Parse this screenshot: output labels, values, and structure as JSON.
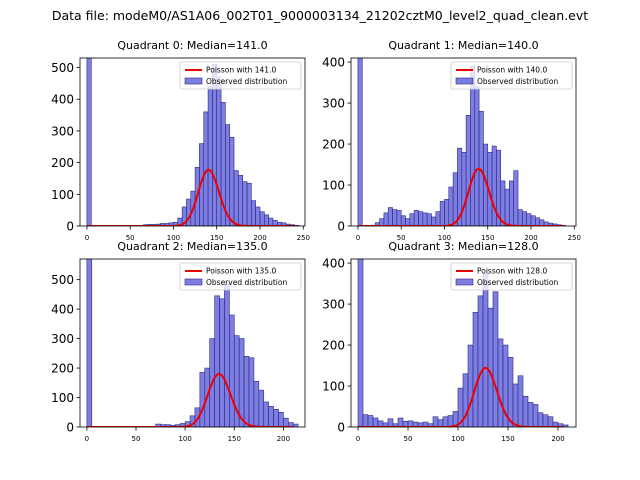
{
  "figure": {
    "title": "Data file: modeM0/AS1A06_002T01_9000003134_21202cztM0_level2_quad_clean.evt"
  },
  "chart_data": [
    {
      "type": "bar",
      "title": "Quadrant 0: Median=141.0",
      "xlim": [
        -8,
        252
      ],
      "ylim": [
        0,
        530
      ],
      "xticks": [
        0,
        50,
        100,
        150,
        200,
        250
      ],
      "yticks": [
        0,
        100,
        200,
        300,
        400,
        500
      ],
      "legend": {
        "position": "top-right",
        "line_label": "Poisson with 141.0",
        "bar_label": "Observed distribution"
      },
      "series": [
        {
          "name": "Observed distribution",
          "type": "bar",
          "color": "#6666dd",
          "bin_width": 5,
          "bins": [
            0,
            65,
            70,
            75,
            80,
            85,
            90,
            95,
            100,
            105,
            110,
            115,
            120,
            125,
            130,
            135,
            140,
            145,
            150,
            155,
            160,
            165,
            170,
            175,
            180,
            185,
            190,
            195,
            200,
            205,
            210,
            215,
            220,
            225,
            230,
            235,
            240
          ],
          "values": [
            530,
            4,
            5,
            5,
            6,
            8,
            8,
            10,
            12,
            25,
            60,
            85,
            110,
            185,
            260,
            360,
            440,
            510,
            470,
            390,
            320,
            280,
            175,
            160,
            140,
            135,
            80,
            60,
            45,
            35,
            25,
            18,
            12,
            10,
            6,
            4,
            2
          ]
        },
        {
          "name": "Poisson with 141.0",
          "type": "line",
          "color": "#ee0000",
          "mean": 141.0,
          "scale": 5280,
          "x_start": 0,
          "x_end": 240
        }
      ]
    },
    {
      "type": "bar",
      "title": "Quadrant 1: Median=140.0",
      "xlim": [
        -8,
        252
      ],
      "ylim": [
        0,
        410
      ],
      "xticks": [
        0,
        50,
        100,
        150,
        200,
        250
      ],
      "yticks": [
        0,
        100,
        200,
        300,
        400
      ],
      "legend": {
        "position": "top-right",
        "line_label": "Poisson with 140.0",
        "bar_label": "Observed distribution"
      },
      "series": [
        {
          "name": "Observed distribution",
          "type": "bar",
          "color": "#6666dd",
          "bin_width": 5,
          "bins": [
            0,
            15,
            20,
            25,
            30,
            35,
            40,
            45,
            50,
            55,
            60,
            65,
            70,
            75,
            80,
            85,
            90,
            95,
            100,
            105,
            110,
            115,
            120,
            125,
            130,
            135,
            140,
            145,
            150,
            155,
            160,
            165,
            170,
            175,
            180,
            185,
            190,
            195,
            200,
            205,
            210,
            215,
            220,
            225,
            230
          ],
          "values": [
            410,
            2,
            8,
            18,
            32,
            45,
            40,
            38,
            25,
            18,
            30,
            38,
            35,
            32,
            30,
            22,
            35,
            60,
            65,
            95,
            130,
            190,
            180,
            270,
            390,
            340,
            280,
            200,
            180,
            195,
            185,
            110,
            90,
            110,
            135,
            40,
            35,
            30,
            25,
            20,
            15,
            10,
            7,
            5,
            3
          ]
        },
        {
          "name": "Poisson with 140.0",
          "type": "line",
          "color": "#ee0000",
          "mean": 140.0,
          "scale": 4140,
          "x_start": 0,
          "x_end": 240
        }
      ]
    },
    {
      "type": "bar",
      "title": "Quadrant 2: Median=135.0",
      "xlim": [
        -7,
        222
      ],
      "ylim": [
        0,
        570
      ],
      "xticks": [
        0,
        50,
        100,
        150,
        200
      ],
      "yticks": [
        0,
        100,
        200,
        300,
        400,
        500
      ],
      "legend": {
        "position": "top-right",
        "line_label": "Poisson with 135.0",
        "bar_label": "Observed distribution"
      },
      "series": [
        {
          "name": "Observed distribution",
          "type": "bar",
          "color": "#6666dd",
          "bin_width": 5,
          "bins": [
            0,
            70,
            75,
            80,
            85,
            90,
            95,
            100,
            105,
            110,
            115,
            120,
            125,
            130,
            135,
            140,
            145,
            150,
            155,
            160,
            165,
            170,
            175,
            180,
            185,
            190,
            195,
            200,
            205,
            210
          ],
          "values": [
            570,
            10,
            8,
            8,
            6,
            8,
            12,
            18,
            38,
            65,
            185,
            200,
            300,
            445,
            435,
            485,
            380,
            310,
            300,
            240,
            235,
            155,
            125,
            85,
            70,
            60,
            50,
            30,
            15,
            10
          ]
        },
        {
          "name": "Poisson with 135.0",
          "type": "line",
          "color": "#ee0000",
          "mean": 135.0,
          "scale": 5240,
          "x_start": 0,
          "x_end": 210
        }
      ]
    },
    {
      "type": "bar",
      "title": "Quadrant 3: Median=128.0",
      "xlim": [
        -7,
        218
      ],
      "ylim": [
        0,
        410
      ],
      "xticks": [
        0,
        50,
        100,
        150,
        200
      ],
      "yticks": [
        0,
        100,
        200,
        300,
        400
      ],
      "legend": {
        "position": "top-right",
        "line_label": "Poisson with 128.0",
        "bar_label": "Observed distribution"
      },
      "series": [
        {
          "name": "Observed distribution",
          "type": "bar",
          "color": "#6666dd",
          "bin_width": 5,
          "bins": [
            0,
            5,
            10,
            15,
            20,
            25,
            30,
            35,
            40,
            45,
            50,
            55,
            60,
            65,
            70,
            75,
            80,
            85,
            90,
            95,
            100,
            105,
            110,
            115,
            120,
            125,
            130,
            135,
            140,
            145,
            150,
            155,
            160,
            165,
            170,
            175,
            180,
            185,
            190,
            195,
            200,
            205
          ],
          "values": [
            410,
            30,
            28,
            22,
            15,
            10,
            20,
            8,
            22,
            14,
            15,
            12,
            10,
            12,
            8,
            25,
            18,
            25,
            28,
            38,
            95,
            130,
            200,
            280,
            320,
            375,
            290,
            330,
            215,
            200,
            170,
            105,
            125,
            75,
            60,
            55,
            35,
            30,
            25,
            12,
            8,
            5
          ]
        },
        {
          "name": "Poisson with 128.0",
          "type": "line",
          "color": "#ee0000",
          "mean": 128.0,
          "scale": 4090,
          "x_start": 0,
          "x_end": 205
        }
      ]
    }
  ]
}
